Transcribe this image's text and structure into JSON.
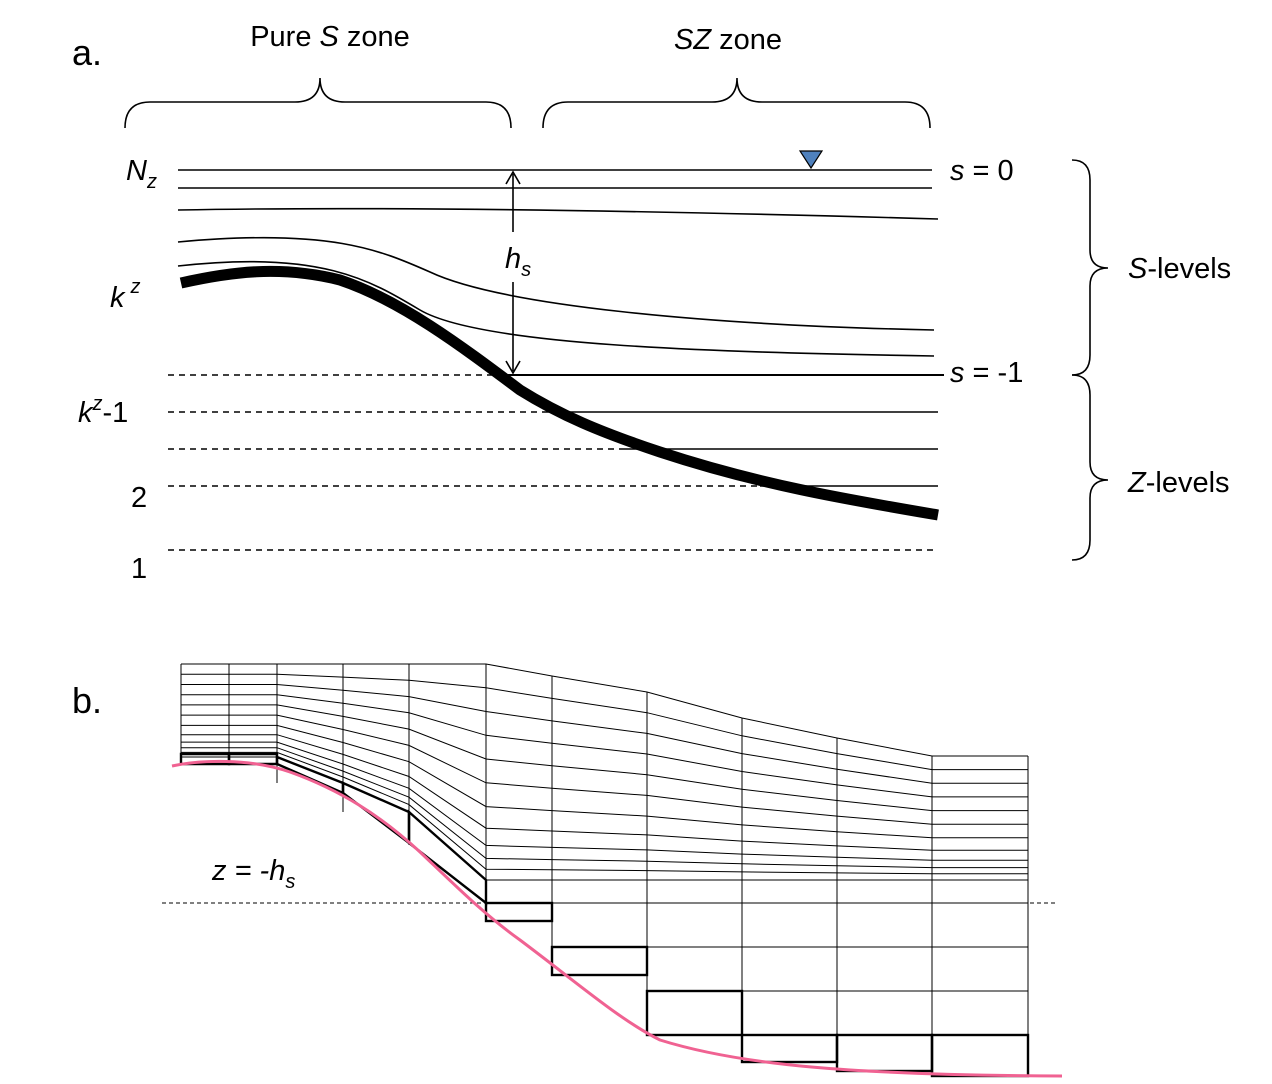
{
  "panel_a": {
    "label": "a.",
    "zone_pure_s": {
      "pre": "Pure ",
      "italic": "S",
      "post": " zone"
    },
    "zone_sz": {
      "italic": "SZ",
      "post": " zone"
    },
    "left_labels": {
      "nz_main": "N",
      "nz_sub": "z",
      "kz_main": "k",
      "kz_sup": "z",
      "kz1_main": "k",
      "kz1_sup": "z",
      "kz1_post": "-1",
      "level_2": "2",
      "level_1": "1"
    },
    "right_labels": {
      "s0_italic": "s",
      "s0_post": " = 0",
      "s1_italic": "s",
      "s1_post": " = -1",
      "slevels_italic": "S",
      "slevels_post": "-levels",
      "zlevels_italic": "Z",
      "zlevels_post": "-levels"
    },
    "hs_main": "h",
    "hs_sub": "s",
    "colors": {
      "free_surface_marker": "#4f81bd"
    }
  },
  "panel_b": {
    "label": "b.",
    "z_label": {
      "pre": "z = -",
      "main": "h",
      "sub": "s"
    },
    "colors": {
      "bottom_curve": "#f06292"
    }
  }
}
